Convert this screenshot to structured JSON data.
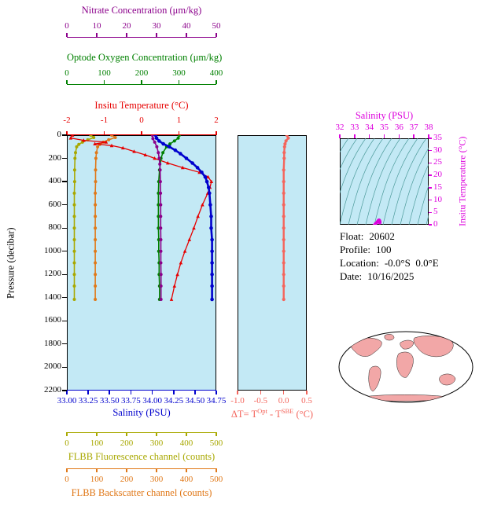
{
  "figure": {
    "background": "#ffffff",
    "plot_background": "#c3e9f5"
  },
  "info": {
    "float_label": "Float:",
    "float_value": "20602",
    "profile_label": "Profile:",
    "profile_value": "100",
    "location_label": "Location:",
    "location_value": "-0.0°S  0.0°E",
    "date_label": "Date:",
    "date_value": "10/16/2025"
  },
  "map": {
    "land_color": "#f2a7a7",
    "ocean_color": "#ffffff",
    "outline_color": "#000000"
  },
  "chart_data": [
    {
      "type": "line",
      "name": "float-profile-plot",
      "ylabel": "Pressure (decibar)",
      "ylim": [
        0,
        2200
      ],
      "yticks": [
        0,
        200,
        400,
        600,
        800,
        1000,
        1200,
        1400,
        1600,
        1800,
        2000,
        2200
      ],
      "grid": false,
      "x_axes": [
        {
          "id": "nitrate",
          "label": "Nitrate Concentration (μm/kg)",
          "color": "#8b008b",
          "range": [
            0,
            50
          ],
          "ticks": [
            0,
            10,
            20,
            30,
            40,
            50
          ]
        },
        {
          "id": "oxygen",
          "label": "Optode Oxygen Concentration (μm/kg)",
          "color": "#008000",
          "range": [
            0,
            400
          ],
          "ticks": [
            0,
            100,
            200,
            300,
            400
          ]
        },
        {
          "id": "temperature",
          "label": "Insitu Temperature (°C)",
          "color": "#e60000",
          "range": [
            -2,
            2
          ],
          "ticks": [
            -2,
            -1,
            0,
            1,
            2
          ]
        },
        {
          "id": "salinity",
          "label": "Salinity (PSU)",
          "color": "#0000cd",
          "range": [
            33.0,
            34.75
          ],
          "ticks": [
            "33.00",
            "33.25",
            "33.50",
            "33.75",
            "34.00",
            "34.25",
            "34.50",
            "34.75"
          ]
        },
        {
          "id": "fluorescence",
          "label": "FLBB Fluorescence channel (counts)",
          "color": "#a8a800",
          "range": [
            0,
            500
          ],
          "ticks": [
            0,
            100,
            200,
            300,
            400,
            500
          ]
        },
        {
          "id": "backscatter",
          "label": "FLBB Backscatter channel (counts)",
          "color": "#e07818",
          "range": [
            0,
            500
          ],
          "ticks": [
            0,
            100,
            200,
            300,
            400,
            500
          ]
        }
      ],
      "series": [
        {
          "axis": "fluorescence",
          "name": "FLBB Fluorescence",
          "color": "#a8a800",
          "points": [
            [
              0,
              80
            ],
            [
              20,
              90
            ],
            [
              40,
              70
            ],
            [
              60,
              52
            ],
            [
              80,
              40
            ],
            [
              100,
              33
            ],
            [
              150,
              29
            ],
            [
              200,
              27
            ],
            [
              300,
              26
            ],
            [
              400,
              26
            ],
            [
              500,
              25
            ],
            [
              600,
              25
            ],
            [
              700,
              25
            ],
            [
              800,
              25
            ],
            [
              900,
              25
            ],
            [
              1000,
              25
            ],
            [
              1100,
              25
            ],
            [
              1200,
              25
            ],
            [
              1300,
              25
            ],
            [
              1415,
              25
            ]
          ]
        },
        {
          "axis": "backscatter",
          "name": "FLBB Backscatter",
          "color": "#e07818",
          "points": [
            [
              0,
              150
            ],
            [
              20,
              162
            ],
            [
              40,
              140
            ],
            [
              60,
              122
            ],
            [
              80,
              110
            ],
            [
              100,
              103
            ],
            [
              150,
              99
            ],
            [
              200,
              97
            ],
            [
              300,
              96
            ],
            [
              400,
              96
            ],
            [
              500,
              95
            ],
            [
              600,
              95
            ],
            [
              700,
              95
            ],
            [
              800,
              95
            ],
            [
              900,
              95
            ],
            [
              1000,
              95
            ],
            [
              1100,
              95
            ],
            [
              1200,
              95
            ],
            [
              1300,
              95
            ],
            [
              1415,
              95
            ]
          ]
        },
        {
          "axis": "temperature",
          "name": "Insitu Temperature",
          "color": "#e60000",
          "points": [
            [
              0,
              -1.85
            ],
            [
              25,
              -1.9
            ],
            [
              45,
              -1.55
            ],
            [
              60,
              -0.95
            ],
            [
              75,
              -1.25
            ],
            [
              90,
              -0.8
            ],
            [
              110,
              -0.5
            ],
            [
              140,
              -0.2
            ],
            [
              170,
              0.1
            ],
            [
              200,
              0.35
            ],
            [
              240,
              0.7
            ],
            [
              280,
              1.1
            ],
            [
              320,
              1.55
            ],
            [
              360,
              1.78
            ],
            [
              400,
              1.87
            ],
            [
              450,
              1.83
            ],
            [
              500,
              1.77
            ],
            [
              600,
              1.63
            ],
            [
              700,
              1.51
            ],
            [
              800,
              1.4
            ],
            [
              900,
              1.28
            ],
            [
              1000,
              1.16
            ],
            [
              1100,
              1.05
            ],
            [
              1200,
              0.96
            ],
            [
              1300,
              0.88
            ],
            [
              1415,
              0.8
            ]
          ]
        },
        {
          "axis": "oxygen",
          "name": "Optode Oxygen Concentration",
          "color": "#008000",
          "points": [
            [
              0,
              301
            ],
            [
              25,
              298
            ],
            [
              50,
              288
            ],
            [
              75,
              276
            ],
            [
              100,
              267
            ],
            [
              150,
              257
            ],
            [
              200,
              252
            ],
            [
              300,
              248
            ],
            [
              400,
              246
            ],
            [
              500,
              245
            ],
            [
              600,
              245
            ],
            [
              700,
              245
            ],
            [
              800,
              245
            ],
            [
              900,
              246
            ],
            [
              1000,
              246
            ],
            [
              1100,
              247
            ],
            [
              1200,
              247
            ],
            [
              1300,
              248
            ],
            [
              1415,
              248
            ]
          ]
        },
        {
          "axis": "nitrate",
          "name": "Nitrate Concentration",
          "color": "#8b008b",
          "points": [
            [
              0,
              28.6
            ],
            [
              30,
              28.8
            ],
            [
              60,
              29.4
            ],
            [
              100,
              30.1
            ],
            [
              150,
              30.6
            ],
            [
              200,
              30.9
            ],
            [
              250,
              31.1
            ],
            [
              300,
              31.2
            ],
            [
              400,
              31.3
            ],
            [
              500,
              31.35
            ],
            [
              600,
              31.4
            ],
            [
              700,
              31.4
            ],
            [
              800,
              31.4
            ],
            [
              900,
              31.45
            ],
            [
              1000,
              31.45
            ],
            [
              1100,
              31.45
            ],
            [
              1200,
              31.5
            ],
            [
              1300,
              31.5
            ],
            [
              1415,
              31.5
            ]
          ]
        },
        {
          "axis": "salinity",
          "name": "Salinity",
          "color": "#0000cd",
          "points": [
            [
              0,
              34.04
            ],
            [
              25,
              34.05
            ],
            [
              50,
              34.08
            ],
            [
              75,
              34.13
            ],
            [
              100,
              34.2
            ],
            [
              130,
              34.27
            ],
            [
              160,
              34.33
            ],
            [
              200,
              34.4
            ],
            [
              240,
              34.47
            ],
            [
              280,
              34.53
            ],
            [
              320,
              34.58
            ],
            [
              360,
              34.62
            ],
            [
              400,
              34.64
            ],
            [
              450,
              34.66
            ],
            [
              500,
              34.67
            ],
            [
              600,
              34.68
            ],
            [
              700,
              34.69
            ],
            [
              800,
              34.69
            ],
            [
              900,
              34.7
            ],
            [
              1000,
              34.7
            ],
            [
              1100,
              34.7
            ],
            [
              1200,
              34.7
            ],
            [
              1300,
              34.7
            ],
            [
              1415,
              34.7
            ]
          ]
        }
      ]
    },
    {
      "type": "line",
      "name": "delta-t-plot",
      "color": "#f4655c",
      "xlabel_parts": {
        "prefix": "ΔT= T",
        "sup1": "Opt",
        "mid": " - T",
        "sup2": "SBE",
        "suffix": " (°C)"
      },
      "xlim": [
        -1.0,
        0.5
      ],
      "xticks": [
        "-1.0",
        "-0.5",
        "0.0",
        "0.5"
      ],
      "ylim": [
        0,
        2200
      ],
      "series": [
        {
          "name": "delta-T",
          "color": "#f4655c",
          "points": [
            [
              0,
              0.07
            ],
            [
              25,
              0.1
            ],
            [
              50,
              0.05
            ],
            [
              75,
              0.03
            ],
            [
              100,
              0.02
            ],
            [
              150,
              0.01
            ],
            [
              200,
              0.01
            ],
            [
              300,
              0
            ],
            [
              400,
              0
            ],
            [
              500,
              0
            ],
            [
              600,
              0
            ],
            [
              700,
              0
            ],
            [
              800,
              0
            ],
            [
              900,
              0
            ],
            [
              1000,
              0
            ],
            [
              1100,
              0
            ],
            [
              1200,
              0
            ],
            [
              1300,
              0
            ],
            [
              1415,
              0
            ]
          ]
        }
      ]
    },
    {
      "type": "scatter",
      "name": "ts-diagram",
      "xlabel": "Salinity (PSU)",
      "ylabel": "Insitu Temperature (°C)",
      "color": "#dd00dd",
      "xlim": [
        32,
        38
      ],
      "xticks": [
        32,
        33,
        34,
        35,
        36,
        37,
        38
      ],
      "ylim": [
        0,
        35
      ],
      "yticks": [
        0,
        5,
        10,
        15,
        20,
        25,
        30,
        35
      ],
      "points": [
        [
          34.04,
          -1.85
        ],
        [
          34.05,
          -1.9
        ],
        [
          34.08,
          -1.55
        ],
        [
          34.13,
          -0.95
        ],
        [
          34.2,
          -0.8
        ],
        [
          34.27,
          -0.5
        ],
        [
          34.33,
          -0.2
        ],
        [
          34.4,
          0.35
        ],
        [
          34.47,
          0.7
        ],
        [
          34.53,
          1.1
        ],
        [
          34.58,
          1.55
        ],
        [
          34.62,
          1.78
        ],
        [
          34.64,
          1.87
        ],
        [
          34.66,
          1.83
        ],
        [
          34.67,
          1.77
        ],
        [
          34.68,
          1.63
        ],
        [
          34.69,
          1.51
        ],
        [
          34.69,
          1.4
        ],
        [
          34.7,
          1.28
        ],
        [
          34.7,
          1.16
        ],
        [
          34.7,
          1.05
        ],
        [
          34.7,
          0.96
        ],
        [
          34.7,
          0.88
        ],
        [
          34.7,
          0.8
        ]
      ]
    }
  ]
}
